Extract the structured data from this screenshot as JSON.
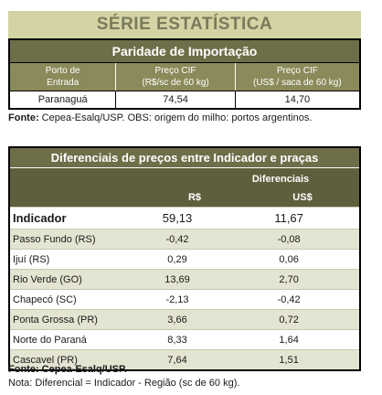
{
  "header": {
    "title": "SÉRIE ESTATÍSTICA"
  },
  "import_table": {
    "title": "Paridade de Importação",
    "columns": [
      [
        "Porto de",
        "Entrada"
      ],
      [
        "Preço CIF",
        "(R$/sc de 60 kg)"
      ],
      [
        "Preço CIF",
        "(US$ / saca de 60 kg)"
      ]
    ],
    "row": {
      "port": "Paranaguá",
      "price_rs": "74,54",
      "price_usd": "14,70"
    }
  },
  "note1": {
    "label": "Fonte:",
    "text": " Cepea-Esalq/USP. OBS: origem do milho: portos argentinos."
  },
  "diff_table": {
    "title": "Diferenciais de preços entre Indicador e praças",
    "group_header": "Diferenciais",
    "col_rs": "R$",
    "col_usd": "US$",
    "rows": [
      {
        "name": "Indicador",
        "rs": "59,13",
        "usd": "11,67"
      },
      {
        "name": "Passo Fundo (RS)",
        "rs": "-0,42",
        "usd": "-0,08"
      },
      {
        "name": "Ijuí (RS)",
        "rs": "0,29",
        "usd": "0,06"
      },
      {
        "name": "Rio Verde (GO)",
        "rs": "13,69",
        "usd": "2,70"
      },
      {
        "name": "Chapecó (SC)",
        "rs": "-2,13",
        "usd": "-0,42"
      },
      {
        "name": "Ponta Grossa (PR)",
        "rs": "3,66",
        "usd": "0,72"
      },
      {
        "name": "Norte do Paraná",
        "rs": "8,33",
        "usd": "1,64"
      },
      {
        "name": "Cascavel (PR)",
        "rs": "7,64",
        "usd": "1,51"
      }
    ]
  },
  "note2": {
    "source": "Fonte: Cepea-Esalq/USP.",
    "nota": "Nota: Diferencial = Indicador - Região (sc de 60 kg)."
  }
}
